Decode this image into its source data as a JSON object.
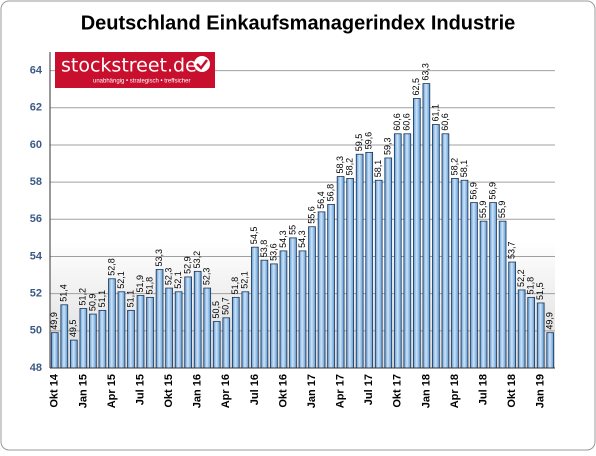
{
  "chart_data": {
    "type": "bar",
    "title": "Deutschland Einkaufsmanagerindex Industrie",
    "logo": {
      "text": "stockstreet.de",
      "tagline": "unabhängig • strategisch • treffsicher"
    },
    "categories": [
      "Okt 14",
      null,
      null,
      "Jan 15",
      null,
      null,
      "Apr 15",
      null,
      null,
      "Jul 15",
      null,
      null,
      "Okt 15",
      null,
      null,
      "Jan 16",
      null,
      null,
      "Apr 16",
      null,
      null,
      "Jul 16",
      null,
      null,
      "Okt 16",
      null,
      null,
      "Jan 17",
      null,
      null,
      "Apr 17",
      null,
      null,
      "Jul 17",
      null,
      null,
      "Okt 17",
      null,
      null,
      "Jan 18",
      null,
      null,
      "Apr 18",
      null,
      null,
      "Jul 18",
      null,
      null,
      "Okt 18",
      null,
      null,
      "Jan 19",
      null
    ],
    "values": [
      49.9,
      51.4,
      49.5,
      51.2,
      50.9,
      51.1,
      52.8,
      52.1,
      51.1,
      51.9,
      51.8,
      53.3,
      52.3,
      52.1,
      52.9,
      53.2,
      52.3,
      50.5,
      50.7,
      51.8,
      52.1,
      54.5,
      53.8,
      53.6,
      54.3,
      55,
      54.3,
      55.6,
      56.4,
      56.8,
      58.3,
      58.2,
      59.5,
      59.6,
      58.1,
      59.3,
      60.6,
      60.6,
      62.5,
      63.3,
      61.1,
      60.6,
      58.2,
      58.1,
      56.9,
      55.9,
      56.9,
      55.9,
      53.7,
      52.2,
      51.8,
      51.5,
      49.9
    ],
    "value_labels": [
      "49,9",
      "51,4",
      "49,5",
      "51,2",
      "50,9",
      "51,1",
      "52,8",
      "52,1",
      "51,1",
      "51,9",
      "51,8",
      "53,3",
      "52,3",
      "52,1",
      "52,9",
      "53,2",
      "52,3",
      "50,5",
      "50,7",
      "51,8",
      "52,1",
      "54,5",
      "53,8",
      "53,6",
      "54,3",
      "55",
      "54,3",
      "55,6",
      "56,4",
      "56,8",
      "58,3",
      "58,2",
      "59,5",
      "59,6",
      "58,1",
      "59,3",
      "60,6",
      "60,6",
      "62,5",
      "63,3",
      "61,1",
      "60,6",
      "58,2",
      "58,1",
      "56,9",
      "55,9",
      "56,9",
      "55,9",
      "53,7",
      "52,2",
      "51,8",
      "51,5",
      "49,9"
    ],
    "color": "#5a9ad6",
    "ylim": [
      48,
      65
    ],
    "yticks": [
      48,
      50,
      52,
      54,
      56,
      58,
      60,
      62,
      64
    ],
    "grid": true
  }
}
